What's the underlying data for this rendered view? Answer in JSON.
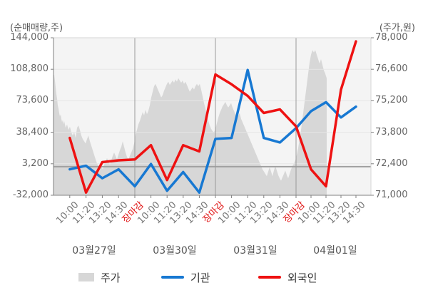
{
  "header": {
    "left_axis_title": "(순매매량,주)",
    "right_axis_title": "(주가,원)"
  },
  "legend": {
    "items": [
      {
        "label": "주가",
        "type": "area",
        "color": "#d7d7d7"
      },
      {
        "label": "기관",
        "type": "line",
        "color": "#1778d2"
      },
      {
        "label": "외국인",
        "type": "line",
        "color": "#ee1212"
      }
    ]
  },
  "chart_data": {
    "type": "line",
    "subtype": "combo: price area (right axis) + institution/foreigner net-buying lines (left axis)",
    "categories": [
      "10:00",
      "11:20",
      "13:20",
      "14:30",
      "장마감",
      "10:00",
      "11:20",
      "13:20",
      "14:30",
      "장마감",
      "10:00",
      "11:20",
      "13:20",
      "14:30",
      "장마감",
      "10:00",
      "11:20",
      "13:20",
      "14:30"
    ],
    "close_label": "장마감",
    "dates": [
      "03월27일",
      "03월30일",
      "03월31일",
      "04월01일"
    ],
    "points_per_day": [
      5,
      5,
      5,
      4
    ],
    "y_axis_left": {
      "title": "(순매매량,주)",
      "tick_labels": [
        "144,000",
        "108,800",
        "73,600",
        "38,400",
        "3,200",
        "-32,000"
      ],
      "tick_values": [
        144000,
        108800,
        73600,
        38400,
        3200,
        -32000
      ],
      "min": -32000,
      "max": 144000
    },
    "y_axis_right": {
      "title": "(주가,원)",
      "tick_labels": [
        "78,000",
        "76,600",
        "75,200",
        "73,800",
        "72,400",
        "71,000"
      ],
      "tick_values": [
        78000,
        76600,
        75200,
        73800,
        72400,
        71000
      ],
      "min": 71000,
      "max": 78000
    },
    "series": [
      {
        "name": "기관",
        "axis": "left",
        "color": "#1778d2",
        "values": [
          -3000,
          1000,
          -13000,
          -3000,
          -22000,
          3000,
          -27000,
          -6000,
          -29000,
          31000,
          32000,
          108000,
          32000,
          27000,
          43000,
          62000,
          72000,
          55000,
          67000
        ]
      },
      {
        "name": "외국인",
        "axis": "left",
        "color": "#ee1212",
        "values": [
          32000,
          -29000,
          5000,
          7000,
          8000,
          24000,
          -15000,
          24000,
          17000,
          103000,
          92000,
          79000,
          60000,
          64000,
          45000,
          -3000,
          -22000,
          86000,
          140000
        ]
      }
    ],
    "price_area": {
      "name": "주가",
      "axis": "right",
      "color": "#d7d7d7",
      "points": [
        [
          75,
          76350
        ],
        [
          76,
          76350
        ],
        [
          77,
          76100
        ],
        [
          78,
          75800
        ],
        [
          79,
          75500
        ],
        [
          80,
          75300
        ],
        [
          81,
          75000
        ],
        [
          82,
          74850
        ],
        [
          83,
          74650
        ],
        [
          84,
          74500
        ],
        [
          85,
          74600
        ],
        [
          86,
          74400
        ],
        [
          87,
          74250
        ],
        [
          88,
          74350
        ],
        [
          89,
          74150
        ],
        [
          90,
          74300
        ],
        [
          92,
          74000
        ],
        [
          94,
          74150
        ],
        [
          96,
          73900
        ],
        [
          98,
          74050
        ],
        [
          100,
          73800
        ],
        [
          102,
          73650
        ],
        [
          104,
          73800
        ],
        [
          106,
          73550
        ],
        [
          108,
          74000
        ],
        [
          110,
          74100
        ],
        [
          112,
          73900
        ],
        [
          114,
          73650
        ],
        [
          116,
          73500
        ],
        [
          118,
          73400
        ],
        [
          120,
          73300
        ],
        [
          122,
          73500
        ],
        [
          124,
          73650
        ],
        [
          126,
          73400
        ],
        [
          128,
          73200
        ],
        [
          130,
          73000
        ],
        [
          132,
          72800
        ],
        [
          134,
          72600
        ],
        [
          136,
          72400
        ],
        [
          138,
          72300
        ],
        [
          140,
          72200
        ],
        [
          142,
          72300
        ],
        [
          144,
          72150
        ],
        [
          146,
          72350
        ],
        [
          148,
          72500
        ],
        [
          150,
          72650
        ],
        [
          152,
          72500
        ],
        [
          154,
          72350
        ],
        [
          156,
          72550
        ],
        [
          158,
          72750
        ],
        [
          160,
          72900
        ],
        [
          162,
          72750
        ],
        [
          164,
          72600
        ],
        [
          166,
          72800
        ],
        [
          168,
          73000
        ],
        [
          170,
          73150
        ],
        [
          172,
          73400
        ],
        [
          174,
          73150
        ],
        [
          176,
          72900
        ],
        [
          178,
          72700
        ],
        [
          180,
          72600
        ],
        [
          182,
          72750
        ],
        [
          184,
          72900
        ],
        [
          186,
          73050
        ],
        [
          188,
          73300
        ],
        [
          190,
          73700
        ],
        [
          192,
          73900
        ],
        [
          194,
          74150
        ],
        [
          196,
          74300
        ],
        [
          198,
          74500
        ],
        [
          200,
          74700
        ],
        [
          202,
          74550
        ],
        [
          204,
          74800
        ],
        [
          206,
          74600
        ],
        [
          208,
          74750
        ],
        [
          210,
          75000
        ],
        [
          212,
          75350
        ],
        [
          214,
          75600
        ],
        [
          216,
          75850
        ],
        [
          218,
          75950
        ],
        [
          220,
          75800
        ],
        [
          222,
          75650
        ],
        [
          224,
          75500
        ],
        [
          226,
          75350
        ],
        [
          228,
          75450
        ],
        [
          230,
          75650
        ],
        [
          232,
          75800
        ],
        [
          234,
          75950
        ],
        [
          236,
          76050
        ],
        [
          238,
          75900
        ],
        [
          240,
          76000
        ],
        [
          242,
          76100
        ],
        [
          244,
          76000
        ],
        [
          246,
          76150
        ],
        [
          248,
          76050
        ],
        [
          250,
          76200
        ],
        [
          252,
          76100
        ],
        [
          254,
          76000
        ],
        [
          256,
          76100
        ],
        [
          258,
          75950
        ],
        [
          260,
          76050
        ],
        [
          262,
          75900
        ],
        [
          264,
          75750
        ],
        [
          266,
          75600
        ],
        [
          268,
          75700
        ],
        [
          270,
          75800
        ],
        [
          272,
          75700
        ],
        [
          274,
          75850
        ],
        [
          276,
          75950
        ],
        [
          278,
          75850
        ],
        [
          280,
          75950
        ],
        [
          282,
          75700
        ],
        [
          284,
          75400
        ],
        [
          286,
          75100
        ],
        [
          288,
          74850
        ],
        [
          290,
          74550
        ],
        [
          292,
          74300
        ],
        [
          294,
          74100
        ],
        [
          296,
          73950
        ],
        [
          298,
          73850
        ],
        [
          300,
          73800
        ],
        [
          302,
          73950
        ],
        [
          304,
          74200
        ],
        [
          306,
          74450
        ],
        [
          308,
          74650
        ],
        [
          310,
          74800
        ],
        [
          312,
          74950
        ],
        [
          314,
          75050
        ],
        [
          316,
          75150
        ],
        [
          318,
          75000
        ],
        [
          320,
          74900
        ],
        [
          322,
          75000
        ],
        [
          324,
          75100
        ],
        [
          326,
          74900
        ],
        [
          328,
          74750
        ],
        [
          330,
          74600
        ],
        [
          332,
          74450
        ],
        [
          334,
          74550
        ],
        [
          336,
          74650
        ],
        [
          338,
          74400
        ],
        [
          340,
          74250
        ],
        [
          342,
          74100
        ],
        [
          344,
          73950
        ],
        [
          346,
          73800
        ],
        [
          348,
          73650
        ],
        [
          350,
          73500
        ],
        [
          352,
          73350
        ],
        [
          354,
          73200
        ],
        [
          356,
          73050
        ],
        [
          358,
          72900
        ],
        [
          360,
          72750
        ],
        [
          362,
          72600
        ],
        [
          364,
          72450
        ],
        [
          366,
          72300
        ],
        [
          368,
          72150
        ],
        [
          370,
          72050
        ],
        [
          372,
          71950
        ],
        [
          374,
          71850
        ],
        [
          376,
          72050
        ],
        [
          378,
          72250
        ],
        [
          380,
          72050
        ],
        [
          382,
          71850
        ],
        [
          384,
          72100
        ],
        [
          386,
          72300
        ],
        [
          388,
          72100
        ],
        [
          390,
          71900
        ],
        [
          392,
          71750
        ],
        [
          394,
          71650
        ],
        [
          396,
          71800
        ],
        [
          398,
          71950
        ],
        [
          400,
          72100
        ],
        [
          402,
          71900
        ],
        [
          404,
          71750
        ],
        [
          406,
          71950
        ],
        [
          408,
          72150
        ],
        [
          410,
          72300
        ],
        [
          412,
          72400
        ],
        [
          414,
          72550
        ],
        [
          416,
          72800
        ],
        [
          418,
          73100
        ],
        [
          420,
          73500
        ],
        [
          422,
          73900
        ],
        [
          424,
          74400
        ],
        [
          426,
          74900
        ],
        [
          428,
          75400
        ],
        [
          430,
          75900
        ],
        [
          432,
          76400
        ],
        [
          434,
          76900
        ],
        [
          436,
          77250
        ],
        [
          438,
          77450
        ],
        [
          440,
          77350
        ],
        [
          442,
          77450
        ],
        [
          444,
          77250
        ],
        [
          446,
          77050
        ],
        [
          448,
          76850
        ],
        [
          450,
          77050
        ],
        [
          452,
          76800
        ],
        [
          454,
          76550
        ],
        [
          456,
          76400
        ],
        [
          458,
          76200
        ]
      ]
    },
    "colors": {
      "plot_bg": "#f4f4f4",
      "grid_light": "#e6e6e6",
      "grid_day": "#9a9a9a",
      "zero_line": "#a0a0a0",
      "axis_line": "#808080",
      "border": "#d6d6d6",
      "close_tick_text": "#e01414"
    },
    "layout_hints": {
      "grid": true,
      "legend_position": "bottom"
    }
  }
}
